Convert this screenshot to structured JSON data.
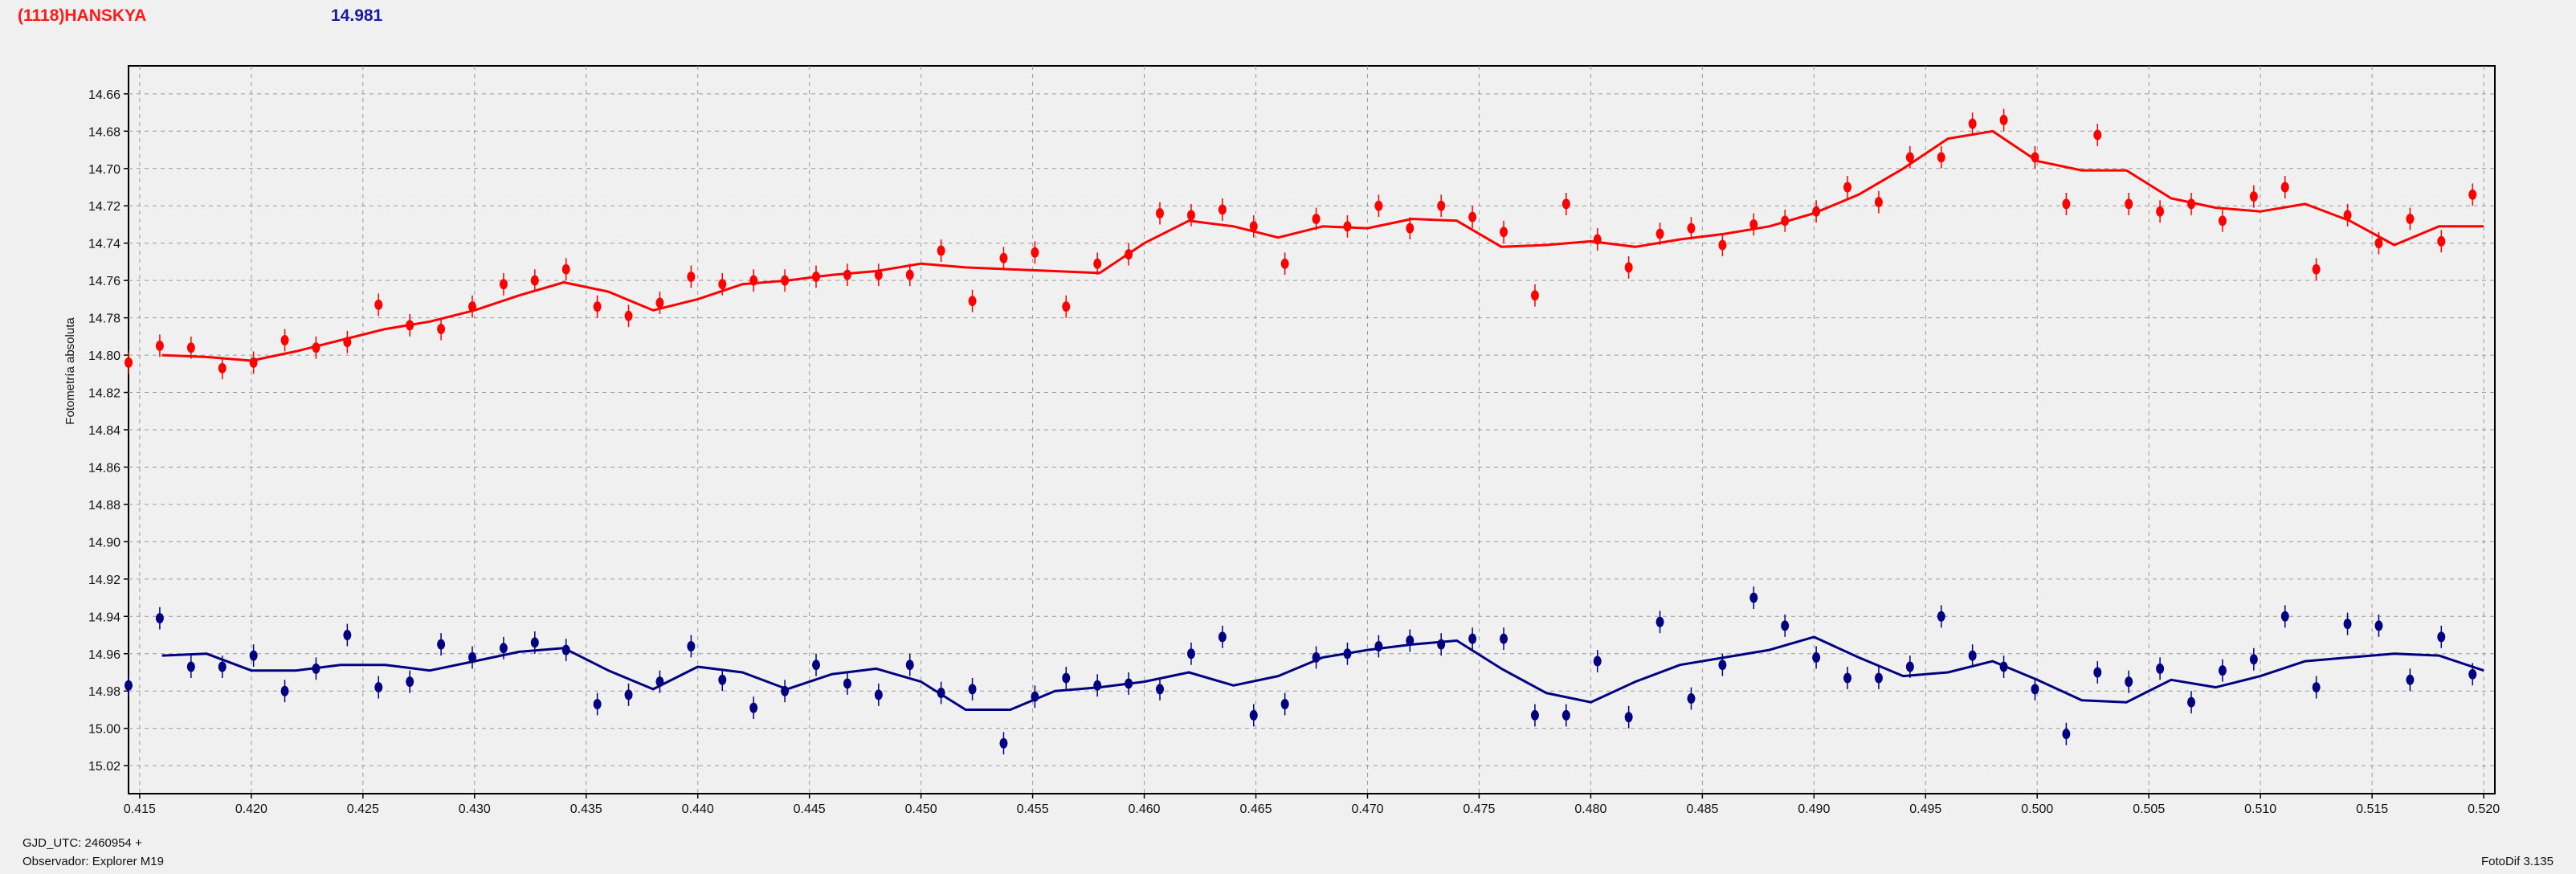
{
  "header": {
    "object_name": "(1118)HANSKYA",
    "reference_mag": "14.981"
  },
  "footer": {
    "gjd_label": "GJD_UTC: 2460954 +",
    "observer_label": "Observador: Explorer M19",
    "software_version": "FotoDif 3.135"
  },
  "colors": {
    "target": "#ff0000",
    "comparison": "#000080",
    "grid": "#9a9a9a",
    "plot_background": "#f0f0f0"
  },
  "chart_data": {
    "type": "scatter",
    "title": "",
    "xlabel": "",
    "ylabel": "Fotometría absoluta",
    "xlim": [
      0.4145,
      0.5205
    ],
    "ylim": [
      14.645,
      15.035
    ],
    "y_inverted": true,
    "grid": true,
    "x_ticks": [
      "0.415",
      "0.420",
      "0.425",
      "0.430",
      "0.435",
      "0.440",
      "0.445",
      "0.450",
      "0.455",
      "0.460",
      "0.465",
      "0.470",
      "0.475",
      "0.480",
      "0.485",
      "0.490",
      "0.495",
      "0.500",
      "0.505",
      "0.510",
      "0.515",
      "0.520"
    ],
    "y_ticks": [
      "14.66",
      "14.68",
      "14.70",
      "14.72",
      "14.74",
      "14.76",
      "14.78",
      "14.80",
      "14.82",
      "14.84",
      "14.86",
      "14.88",
      "14.90",
      "14.92",
      "14.94",
      "14.96",
      "14.98",
      "15.00",
      "15.02"
    ],
    "series": [
      {
        "color": "#ff0000",
        "error": 0.006,
        "x": [
          0.4145,
          0.4159,
          0.4173,
          0.4187,
          0.4201,
          0.4215,
          0.4229,
          0.4243,
          0.4257,
          0.4271,
          0.4285,
          0.4299,
          0.4313,
          0.4327,
          0.4341,
          0.4355,
          0.4369,
          0.4383,
          0.4397,
          0.4411,
          0.4425,
          0.4439,
          0.4453,
          0.4467,
          0.4481,
          0.4495,
          0.4509,
          0.4523,
          0.4537,
          0.4551,
          0.4565,
          0.4579,
          0.4593,
          0.4607,
          0.4621,
          0.4635,
          0.4649,
          0.4663,
          0.4677,
          0.4691,
          0.4705,
          0.4719,
          0.4733,
          0.4747,
          0.4761,
          0.4775,
          0.4789,
          0.4803,
          0.4817,
          0.4831,
          0.4845,
          0.4859,
          0.4873,
          0.4887,
          0.4901,
          0.4915,
          0.4929,
          0.4943,
          0.4957,
          0.4971,
          0.4985,
          0.4999,
          0.5013,
          0.5027,
          0.5041,
          0.5055,
          0.5069,
          0.5083,
          0.5097,
          0.5111,
          0.5125,
          0.5139,
          0.5153,
          0.5167,
          0.5181,
          0.5195
        ],
        "values": [
          14.804,
          14.795,
          14.796,
          14.807,
          14.804,
          14.792,
          14.796,
          14.793,
          14.773,
          14.784,
          14.786,
          14.774,
          14.762,
          14.76,
          14.754,
          14.774,
          14.779,
          14.772,
          14.758,
          14.762,
          14.76,
          14.76,
          14.758,
          14.757,
          14.757,
          14.757,
          14.744,
          14.771,
          14.748,
          14.745,
          14.774,
          14.751,
          14.746,
          14.724,
          14.725,
          14.722,
          14.731,
          14.751,
          14.727,
          14.731,
          14.72,
          14.732,
          14.72,
          14.726,
          14.734,
          14.768,
          14.719,
          14.738,
          14.753,
          14.735,
          14.732,
          14.741,
          14.73,
          14.728,
          14.723,
          14.71,
          14.718,
          14.694,
          14.694,
          14.676,
          14.674,
          14.694,
          14.719,
          14.682,
          14.719,
          14.723,
          14.719,
          14.728,
          14.715,
          14.71,
          14.754,
          14.725,
          14.74,
          14.727,
          14.739,
          14.714
        ],
        "trend_x": [
          0.416,
          0.418,
          0.42,
          0.422,
          0.424,
          0.426,
          0.428,
          0.43,
          0.432,
          0.434,
          0.436,
          0.438,
          0.44,
          0.442,
          0.444,
          0.446,
          0.448,
          0.45,
          0.452,
          0.454,
          0.456,
          0.458,
          0.46,
          0.462,
          0.464,
          0.466,
          0.468,
          0.47,
          0.472,
          0.474,
          0.476,
          0.478,
          0.48,
          0.482,
          0.484,
          0.486,
          0.488,
          0.49,
          0.492,
          0.494,
          0.496,
          0.498,
          0.5,
          0.502,
          0.504,
          0.506,
          0.508,
          0.51,
          0.512,
          0.514,
          0.516,
          0.518,
          0.52
        ],
        "trend_values": [
          14.8,
          14.801,
          14.803,
          14.798,
          14.792,
          14.786,
          14.782,
          14.776,
          14.768,
          14.761,
          14.766,
          14.776,
          14.77,
          14.762,
          14.76,
          14.757,
          14.755,
          14.751,
          14.753,
          14.754,
          14.755,
          14.756,
          14.74,
          14.728,
          14.731,
          14.737,
          14.731,
          14.732,
          14.727,
          14.728,
          14.742,
          14.741,
          14.739,
          14.742,
          14.738,
          14.735,
          14.731,
          14.724,
          14.714,
          14.7,
          14.684,
          14.68,
          14.696,
          14.701,
          14.701,
          14.716,
          14.721,
          14.723,
          14.719,
          14.728,
          14.741,
          14.731,
          14.731
        ]
      },
      {
        "color": "#000080",
        "error": 0.006,
        "x": [
          0.4145,
          0.4159,
          0.4173,
          0.4187,
          0.4201,
          0.4215,
          0.4229,
          0.4243,
          0.4257,
          0.4271,
          0.4285,
          0.4299,
          0.4313,
          0.4327,
          0.4341,
          0.4355,
          0.4369,
          0.4383,
          0.4397,
          0.4411,
          0.4425,
          0.4439,
          0.4453,
          0.4467,
          0.4481,
          0.4495,
          0.4509,
          0.4523,
          0.4537,
          0.4551,
          0.4565,
          0.4579,
          0.4593,
          0.4607,
          0.4621,
          0.4635,
          0.4649,
          0.4663,
          0.4677,
          0.4691,
          0.4705,
          0.4719,
          0.4733,
          0.4747,
          0.4761,
          0.4775,
          0.4789,
          0.4803,
          0.4817,
          0.4831,
          0.4845,
          0.4859,
          0.4873,
          0.4887,
          0.4901,
          0.4915,
          0.4929,
          0.4943,
          0.4957,
          0.4971,
          0.4985,
          0.4999,
          0.5013,
          0.5027,
          0.5041,
          0.5055,
          0.5069,
          0.5083,
          0.5097,
          0.5111,
          0.5125,
          0.5139,
          0.5153,
          0.5167,
          0.5181,
          0.5195
        ],
        "values": [
          14.977,
          14.941,
          14.967,
          14.967,
          14.961,
          14.98,
          14.968,
          14.95,
          14.978,
          14.975,
          14.955,
          14.962,
          14.957,
          14.954,
          14.958,
          14.987,
          14.982,
          14.975,
          14.956,
          14.974,
          14.989,
          14.98,
          14.966,
          14.976,
          14.982,
          14.966,
          14.981,
          14.979,
          15.008,
          14.983,
          14.973,
          14.977,
          14.976,
          14.979,
          14.96,
          14.951,
          14.993,
          14.987,
          14.962,
          14.96,
          14.956,
          14.953,
          14.955,
          14.952,
          14.952,
          14.993,
          14.993,
          14.964,
          14.994,
          14.943,
          14.984,
          14.966,
          14.93,
          14.945,
          14.962,
          14.973,
          14.973,
          14.967,
          14.94,
          14.961,
          14.967,
          14.979,
          15.003,
          14.97,
          14.975,
          14.968,
          14.986,
          14.969,
          14.963,
          14.94,
          14.978,
          14.944,
          14.945,
          14.974,
          14.951,
          14.971
        ],
        "trend_x": [
          0.416,
          0.418,
          0.42,
          0.422,
          0.424,
          0.426,
          0.428,
          0.43,
          0.432,
          0.434,
          0.436,
          0.438,
          0.44,
          0.442,
          0.444,
          0.446,
          0.448,
          0.45,
          0.452,
          0.454,
          0.456,
          0.458,
          0.46,
          0.462,
          0.464,
          0.466,
          0.468,
          0.47,
          0.472,
          0.474,
          0.476,
          0.478,
          0.48,
          0.482,
          0.484,
          0.486,
          0.488,
          0.49,
          0.492,
          0.494,
          0.496,
          0.498,
          0.5,
          0.502,
          0.504,
          0.506,
          0.508,
          0.51,
          0.512,
          0.514,
          0.516,
          0.518,
          0.52
        ],
        "trend_values": [
          14.961,
          14.96,
          14.969,
          14.969,
          14.966,
          14.966,
          14.969,
          14.964,
          14.959,
          14.957,
          14.969,
          14.979,
          14.967,
          14.97,
          14.979,
          14.971,
          14.968,
          14.975,
          14.99,
          14.99,
          14.98,
          14.978,
          14.975,
          14.97,
          14.977,
          14.972,
          14.962,
          14.958,
          14.955,
          14.953,
          14.968,
          14.981,
          14.986,
          14.975,
          14.966,
          14.962,
          14.958,
          14.951,
          14.962,
          14.972,
          14.97,
          14.964,
          14.974,
          14.985,
          14.986,
          14.974,
          14.978,
          14.972,
          14.964,
          14.962,
          14.96,
          14.961,
          14.969
        ]
      }
    ]
  }
}
